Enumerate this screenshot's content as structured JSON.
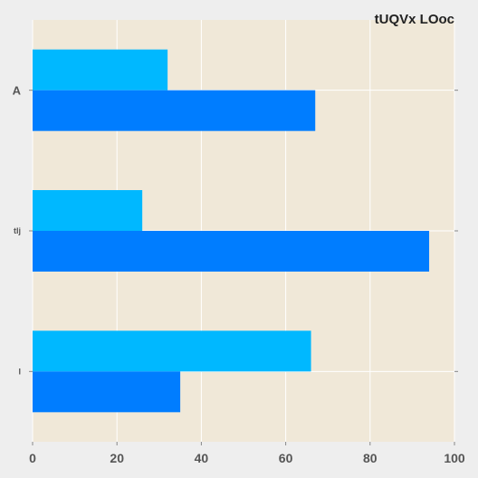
{
  "chart_data": {
    "type": "bar",
    "orientation": "horizontal",
    "title": "tUQVx LOoc",
    "categories": [
      "A",
      "tIj",
      "I"
    ],
    "series": [
      {
        "values": [
          32,
          26,
          66
        ],
        "color": "#00b8ff"
      },
      {
        "values": [
          67,
          94,
          35
        ],
        "color": "#007dff"
      }
    ],
    "xlim": [
      0,
      100
    ],
    "xticks": [
      0,
      20,
      40,
      60,
      80,
      100
    ],
    "grid": true,
    "legend": false,
    "colors": {
      "page_background": "#eeeeee",
      "plot_background": "#f0e8d8",
      "grid": "#ffffff"
    }
  }
}
